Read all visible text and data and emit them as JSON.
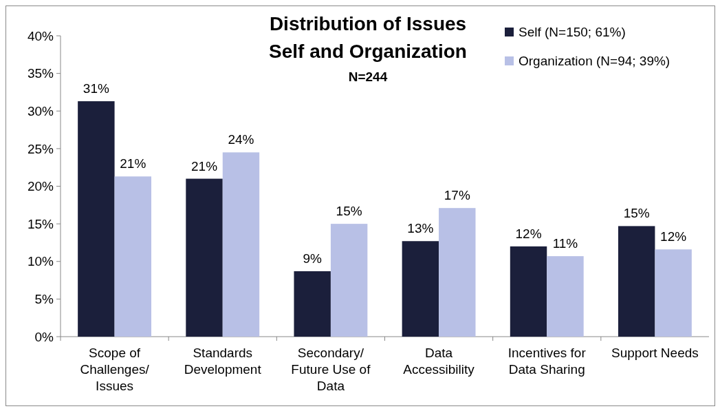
{
  "chart_data": {
    "type": "bar",
    "title": "Distribution of Issues",
    "subtitle": "Self and Organization",
    "annotations": [
      "N=244"
    ],
    "categories": [
      "Scope of Challenges/ Issues",
      "Standards Development",
      "Secondary/ Future Use of Data",
      "Data Accessibility",
      "Incentives for Data Sharing",
      "Support Needs"
    ],
    "series": [
      {
        "name": "Self (N=150; 61%)",
        "color": "#1b1f3b",
        "values": [
          31.3,
          21.0,
          8.7,
          12.7,
          12.0,
          14.7
        ],
        "value_labels": [
          "31%",
          "21%",
          "9%",
          "13%",
          "12%",
          "15%"
        ]
      },
      {
        "name": "Organization (N=94; 39%)",
        "color": "#b8c0e6",
        "values": [
          21.3,
          24.5,
          15.0,
          17.1,
          10.7,
          11.6
        ],
        "value_labels": [
          "21%",
          "24%",
          "15%",
          "17%",
          "11%",
          "12%"
        ]
      }
    ],
    "ylim": [
      0,
      40
    ],
    "yticks": [
      {
        "value": 0,
        "label": "0%"
      },
      {
        "value": 5,
        "label": "5%"
      },
      {
        "value": 10,
        "label": "10%"
      },
      {
        "value": 15,
        "label": "15%"
      },
      {
        "value": 20,
        "label": "20%"
      },
      {
        "value": 25,
        "label": "25%"
      },
      {
        "value": 30,
        "label": "30%"
      },
      {
        "value": 35,
        "label": "35%"
      },
      {
        "value": 40,
        "label": "40%"
      }
    ],
    "legend": "top right",
    "grid": false
  }
}
